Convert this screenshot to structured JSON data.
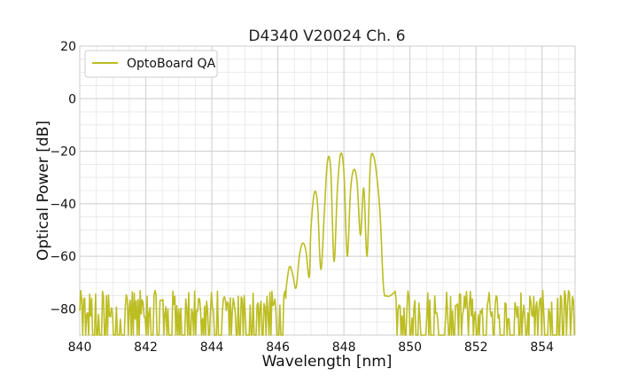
{
  "chart_data": {
    "type": "line",
    "title": "D4340 V20024 Ch. 6",
    "xlabel": "Wavelength [nm]",
    "ylabel": "Optical Power [dB]",
    "xlim": [
      840,
      855
    ],
    "ylim": [
      -90,
      20
    ],
    "xticks": [
      840,
      842,
      844,
      846,
      848,
      850,
      852,
      854
    ],
    "yticks": [
      20,
      0,
      -20,
      -40,
      -60,
      -80
    ],
    "grid": true,
    "minor_grid": true,
    "legend_placement": "top-left",
    "series": [
      {
        "name": "OptoBoard QA",
        "color": "#bcbd22",
        "noise_floor": {
          "x_ranges": [
            [
              840,
              846.25
            ],
            [
              849.55,
              855
            ]
          ],
          "min": -90,
          "max": -73
        },
        "x": [
          846.25,
          846.35,
          846.45,
          846.55,
          846.65,
          846.75,
          846.85,
          846.95,
          847.0,
          847.1,
          847.2,
          847.3,
          847.4,
          847.5,
          847.6,
          847.7,
          847.8,
          847.9,
          848.0,
          848.1,
          848.2,
          848.3,
          848.4,
          848.5,
          848.6,
          848.7,
          848.8,
          848.9,
          849.0,
          849.1,
          849.2,
          849.3,
          849.4,
          849.5,
          849.55
        ],
        "y": [
          -72,
          -64,
          -67,
          -72,
          -60,
          -55,
          -58,
          -68,
          -50,
          -36,
          -40,
          -65,
          -45,
          -24,
          -27,
          -62,
          -35,
          -21,
          -28,
          -60,
          -35,
          -27,
          -32,
          -52,
          -34,
          -60,
          -25,
          -22,
          -30,
          -45,
          -72,
          -75,
          -75,
          -74,
          -74
        ]
      }
    ]
  }
}
